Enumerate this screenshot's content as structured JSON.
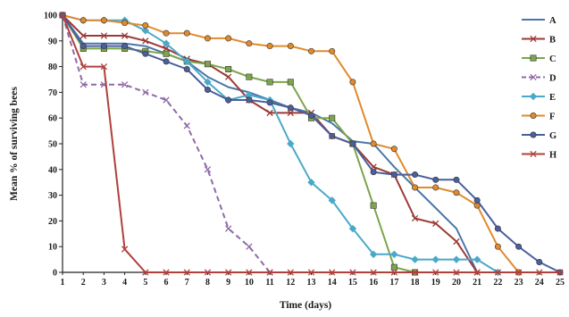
{
  "chart_data": {
    "type": "line",
    "xlabel": "Time (days)",
    "ylabel": "Mean % of surviving bees",
    "xlim": [
      1,
      25
    ],
    "ylim": [
      0,
      100
    ],
    "x_ticks": [
      "1",
      "2",
      "3",
      "4",
      "5",
      "6",
      "7",
      "8",
      "9",
      "10",
      "11",
      "12",
      "13",
      "14",
      "15",
      "16",
      "17",
      "18",
      "19",
      "20",
      "21",
      "22",
      "23",
      "24",
      "25"
    ],
    "y_ticks": [
      "0",
      "10",
      "20",
      "30",
      "40",
      "50",
      "60",
      "70",
      "80",
      "90",
      "100"
    ],
    "grid": false,
    "legend_position": "right",
    "series": [
      {
        "name": "A",
        "color": "#4a77a8",
        "marker": "line",
        "dashed": false,
        "x": [
          1,
          2,
          3,
          4,
          5,
          6,
          7,
          8,
          9,
          10,
          11,
          12,
          13,
          14,
          15,
          16,
          17,
          18,
          19,
          20,
          21
        ],
        "y": [
          100,
          89,
          89,
          89,
          88,
          85,
          82,
          76,
          72,
          70,
          67,
          64,
          62,
          58,
          51,
          50,
          41,
          33,
          25,
          17,
          0
        ]
      },
      {
        "name": "B",
        "color": "#9b3a36",
        "marker": "x",
        "dashed": false,
        "x": [
          1,
          2,
          3,
          4,
          5,
          6,
          7,
          8,
          9,
          10,
          11,
          12,
          13,
          14,
          15,
          16,
          17,
          18,
          19,
          20,
          21
        ],
        "y": [
          100,
          92,
          92,
          92,
          90,
          87,
          83,
          81,
          76,
          67,
          62,
          62,
          62,
          53,
          50,
          41,
          38,
          21,
          19,
          12,
          0
        ]
      },
      {
        "name": "C",
        "color": "#7ca54c",
        "marker": "square",
        "dashed": false,
        "x": [
          1,
          2,
          3,
          4,
          5,
          6,
          7,
          8,
          9,
          10,
          11,
          12,
          13,
          14,
          15,
          16,
          17,
          18
        ],
        "y": [
          100,
          87,
          87,
          87,
          86,
          85,
          82,
          81,
          79,
          76,
          74,
          74,
          60,
          60,
          50,
          26,
          2,
          0
        ]
      },
      {
        "name": "D",
        "color": "#8f6aa8",
        "marker": "x",
        "dashed": true,
        "x": [
          1,
          2,
          3,
          4,
          5,
          6,
          7,
          8,
          9,
          10,
          11
        ],
        "y": [
          100,
          73,
          73,
          73,
          70,
          67,
          57,
          40,
          17,
          10,
          0
        ]
      },
      {
        "name": "E",
        "color": "#4aa9c9",
        "marker": "diamond",
        "dashed": false,
        "x": [
          1,
          2,
          3,
          4,
          5,
          6,
          7,
          8,
          9,
          10,
          11,
          12,
          13,
          14,
          15,
          16,
          17,
          18,
          19,
          20,
          21,
          22
        ],
        "y": [
          100,
          98,
          98,
          98,
          94,
          89,
          82,
          74,
          67,
          69,
          67,
          50,
          35,
          28,
          17,
          7,
          7,
          5,
          5,
          5,
          5,
          0
        ]
      },
      {
        "name": "F",
        "color": "#e08a2c",
        "marker": "circle",
        "dashed": false,
        "x": [
          1,
          2,
          3,
          4,
          5,
          6,
          7,
          8,
          9,
          10,
          11,
          12,
          13,
          14,
          15,
          16,
          17,
          18,
          19,
          20,
          21,
          22,
          23
        ],
        "y": [
          100,
          98,
          98,
          97,
          96,
          93,
          93,
          91,
          91,
          89,
          88,
          88,
          86,
          86,
          74,
          50,
          48,
          33,
          33,
          31,
          26,
          10,
          0
        ]
      },
      {
        "name": "G",
        "color": "#4a5f9c",
        "marker": "circle",
        "dashed": false,
        "x": [
          1,
          2,
          3,
          4,
          5,
          6,
          7,
          8,
          9,
          10,
          11,
          12,
          13,
          14,
          15,
          16,
          17,
          18,
          19,
          20,
          21,
          22,
          23,
          24,
          25
        ],
        "y": [
          100,
          88,
          88,
          88,
          85,
          82,
          79,
          71,
          67,
          67,
          66,
          64,
          61,
          53,
          50,
          39,
          38,
          38,
          36,
          36,
          28,
          17,
          10,
          4,
          0
        ]
      },
      {
        "name": "H",
        "color": "#b0403c",
        "marker": "x",
        "dashed": false,
        "x": [
          1,
          2,
          3,
          4,
          5,
          6,
          7,
          8,
          9,
          10,
          11,
          12,
          13,
          14,
          15,
          16,
          17,
          18,
          19,
          20,
          21,
          22,
          23,
          24,
          25
        ],
        "y": [
          100,
          80,
          80,
          9,
          0,
          0,
          0,
          0,
          0,
          0,
          0,
          0,
          0,
          0,
          0,
          0,
          0,
          0,
          0,
          0,
          0,
          0,
          0,
          0,
          0
        ]
      }
    ]
  }
}
